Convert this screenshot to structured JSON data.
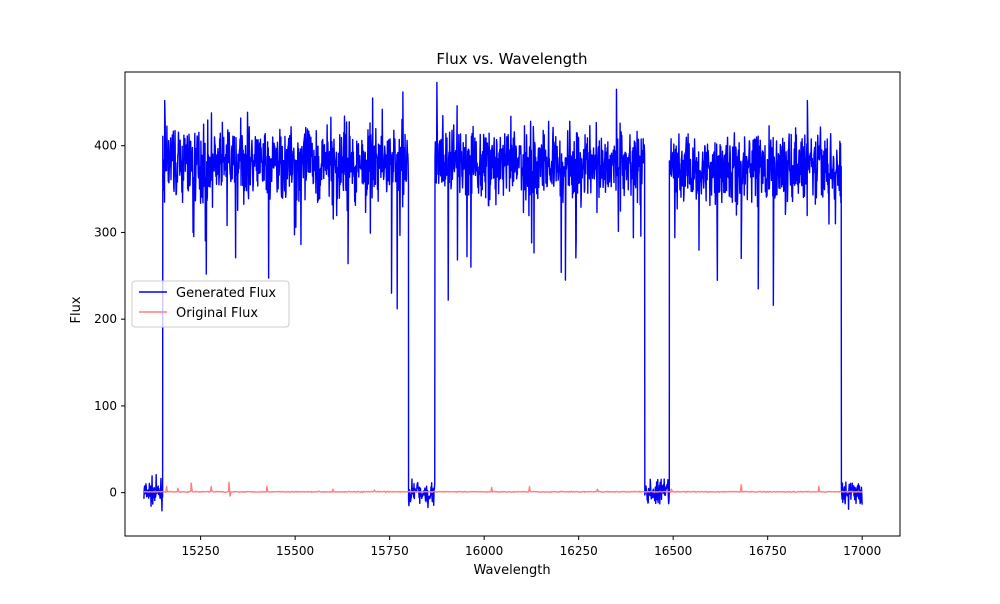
{
  "chart_data": {
    "type": "line",
    "title": "Flux vs. Wavelength",
    "xlabel": "Wavelength",
    "ylabel": "Flux",
    "xlim": [
      15050,
      17100
    ],
    "ylim": [
      -50,
      485
    ],
    "xticks": [
      15250,
      15500,
      15750,
      16000,
      16250,
      16500,
      16750,
      17000
    ],
    "yticks": [
      0,
      100,
      200,
      300,
      400
    ],
    "xtick_labels": [
      "15250",
      "15500",
      "15750",
      "16000",
      "16250",
      "16500",
      "16750",
      "17000"
    ],
    "ytick_labels": [
      "0",
      "100",
      "200",
      "300",
      "400"
    ],
    "grid": false,
    "legend": {
      "position": "center-left",
      "entries": [
        {
          "label": "Generated Flux",
          "color": "#0000ff"
        },
        {
          "label": "Original Flux",
          "color": "#ff7f7f"
        }
      ]
    },
    "series": [
      {
        "name": "Generated Flux",
        "color": "#0000ff",
        "style": "noisy",
        "segments": [
          {
            "x_start": 15100,
            "x_end": 15150,
            "level": 0,
            "noise": 12
          },
          {
            "x_start": 15150,
            "x_end": 15800,
            "level": 380,
            "noise": 35
          },
          {
            "x_start": 15800,
            "x_end": 15870,
            "level": 0,
            "noise": 12
          },
          {
            "x_start": 15870,
            "x_end": 16425,
            "level": 380,
            "noise": 35
          },
          {
            "x_start": 16425,
            "x_end": 16490,
            "level": 0,
            "noise": 12
          },
          {
            "x_start": 16490,
            "x_end": 16945,
            "level": 375,
            "noise": 35
          },
          {
            "x_start": 16945,
            "x_end": 17000,
            "level": 0,
            "noise": 12
          }
        ],
        "spikes": [
          {
            "x": 15155,
            "y": 452
          },
          {
            "x": 15230,
            "y": 300
          },
          {
            "x": 15265,
            "y": 252
          },
          {
            "x": 15320,
            "y": 308
          },
          {
            "x": 15640,
            "y": 264
          },
          {
            "x": 15705,
            "y": 455
          },
          {
            "x": 15755,
            "y": 230
          },
          {
            "x": 15770,
            "y": 212
          },
          {
            "x": 15785,
            "y": 462
          },
          {
            "x": 15875,
            "y": 473
          },
          {
            "x": 15905,
            "y": 222
          },
          {
            "x": 15965,
            "y": 260
          },
          {
            "x": 16215,
            "y": 245
          },
          {
            "x": 16350,
            "y": 465
          },
          {
            "x": 16680,
            "y": 270
          },
          {
            "x": 16725,
            "y": 235
          },
          {
            "x": 16765,
            "y": 216
          },
          {
            "x": 16855,
            "y": 452
          }
        ]
      },
      {
        "name": "Original Flux",
        "color": "#ff7f7f",
        "style": "flat",
        "x_start": 15100,
        "x_end": 17000,
        "level": 1,
        "spikes": [
          {
            "x": 15160,
            "y": 7
          },
          {
            "x": 15190,
            "y": 5
          },
          {
            "x": 15225,
            "y": 11
          },
          {
            "x": 15278,
            "y": 7
          },
          {
            "x": 15325,
            "y": 12
          },
          {
            "x": 15328,
            "y": -4
          },
          {
            "x": 15425,
            "y": 7
          },
          {
            "x": 15600,
            "y": 4
          },
          {
            "x": 15710,
            "y": 3
          },
          {
            "x": 16020,
            "y": 6
          },
          {
            "x": 16120,
            "y": 7
          },
          {
            "x": 16300,
            "y": 4
          },
          {
            "x": 16495,
            "y": 4
          },
          {
            "x": 16680,
            "y": 9
          },
          {
            "x": 16885,
            "y": 7
          }
        ]
      }
    ]
  }
}
